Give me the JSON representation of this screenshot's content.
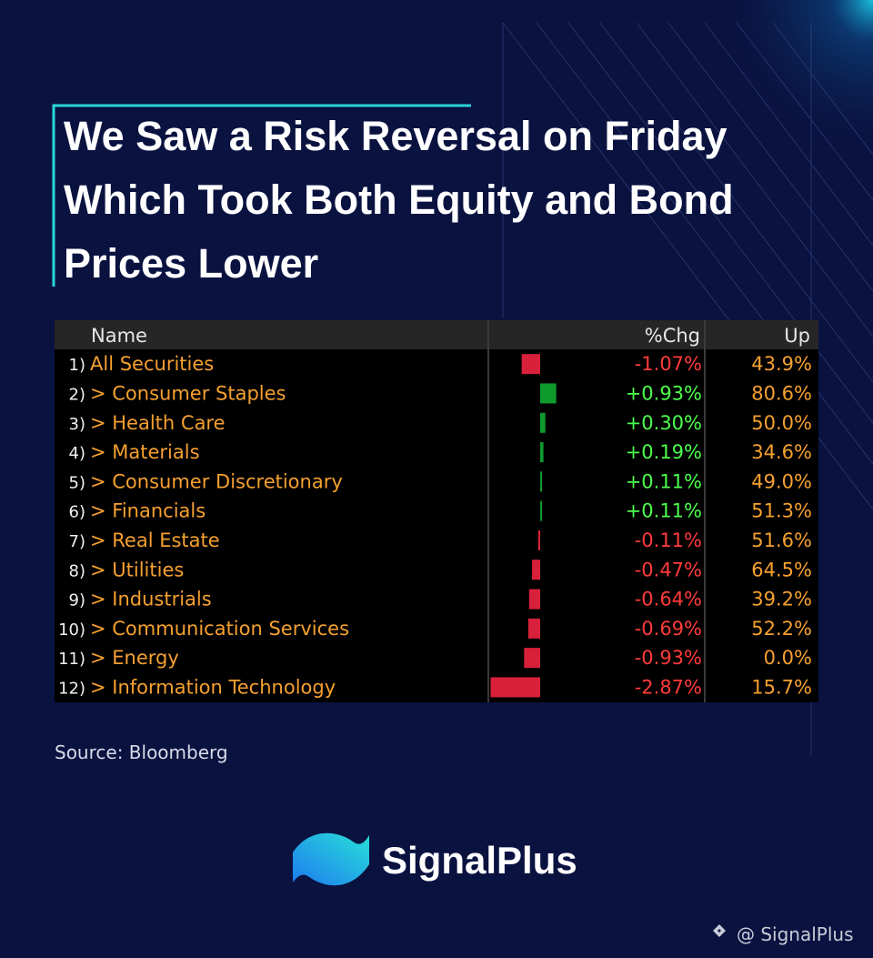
{
  "header": {
    "title_lines": [
      "We Saw a Risk Reversal on Friday",
      "Which Took Both Equity and Bond",
      "Prices Lower"
    ]
  },
  "table": {
    "columns": [
      "Name",
      "%Chg",
      "Up"
    ],
    "rows": [
      {
        "index": "1)",
        "name": "All Securities",
        "chg": -1.07,
        "chg_label": "-1.07%",
        "up": "43.9%"
      },
      {
        "index": "2)",
        "name": "> Consumer Staples",
        "chg": 0.93,
        "chg_label": "+0.93%",
        "up": "80.6%"
      },
      {
        "index": "3)",
        "name": "> Health Care",
        "chg": 0.3,
        "chg_label": "+0.30%",
        "up": "50.0%"
      },
      {
        "index": "4)",
        "name": "> Materials",
        "chg": 0.19,
        "chg_label": "+0.19%",
        "up": "34.6%"
      },
      {
        "index": "5)",
        "name": "> Consumer Discretionary",
        "chg": 0.11,
        "chg_label": "+0.11%",
        "up": "49.0%"
      },
      {
        "index": "6)",
        "name": "> Financials",
        "chg": 0.11,
        "chg_label": "+0.11%",
        "up": "51.3%"
      },
      {
        "index": "7)",
        "name": "> Real Estate",
        "chg": -0.11,
        "chg_label": "-0.11%",
        "up": "51.6%"
      },
      {
        "index": "8)",
        "name": "> Utilities",
        "chg": -0.47,
        "chg_label": "-0.47%",
        "up": "64.5%"
      },
      {
        "index": "9)",
        "name": "> Industrials",
        "chg": -0.64,
        "chg_label": "-0.64%",
        "up": "39.2%"
      },
      {
        "index": "10)",
        "name": "> Communication Services",
        "chg": -0.69,
        "chg_label": "-0.69%",
        "up": "52.2%"
      },
      {
        "index": "11)",
        "name": "> Energy",
        "chg": -0.93,
        "chg_label": "-0.93%",
        "up": "0.0%"
      },
      {
        "index": "12)",
        "name": "> Information Technology",
        "chg": -2.87,
        "chg_label": "-2.87%",
        "up": "15.7%"
      }
    ]
  },
  "footer": {
    "source": "Source: Bloomberg",
    "brand": "SignalPlus",
    "handle": "@ SignalPlus"
  }
}
